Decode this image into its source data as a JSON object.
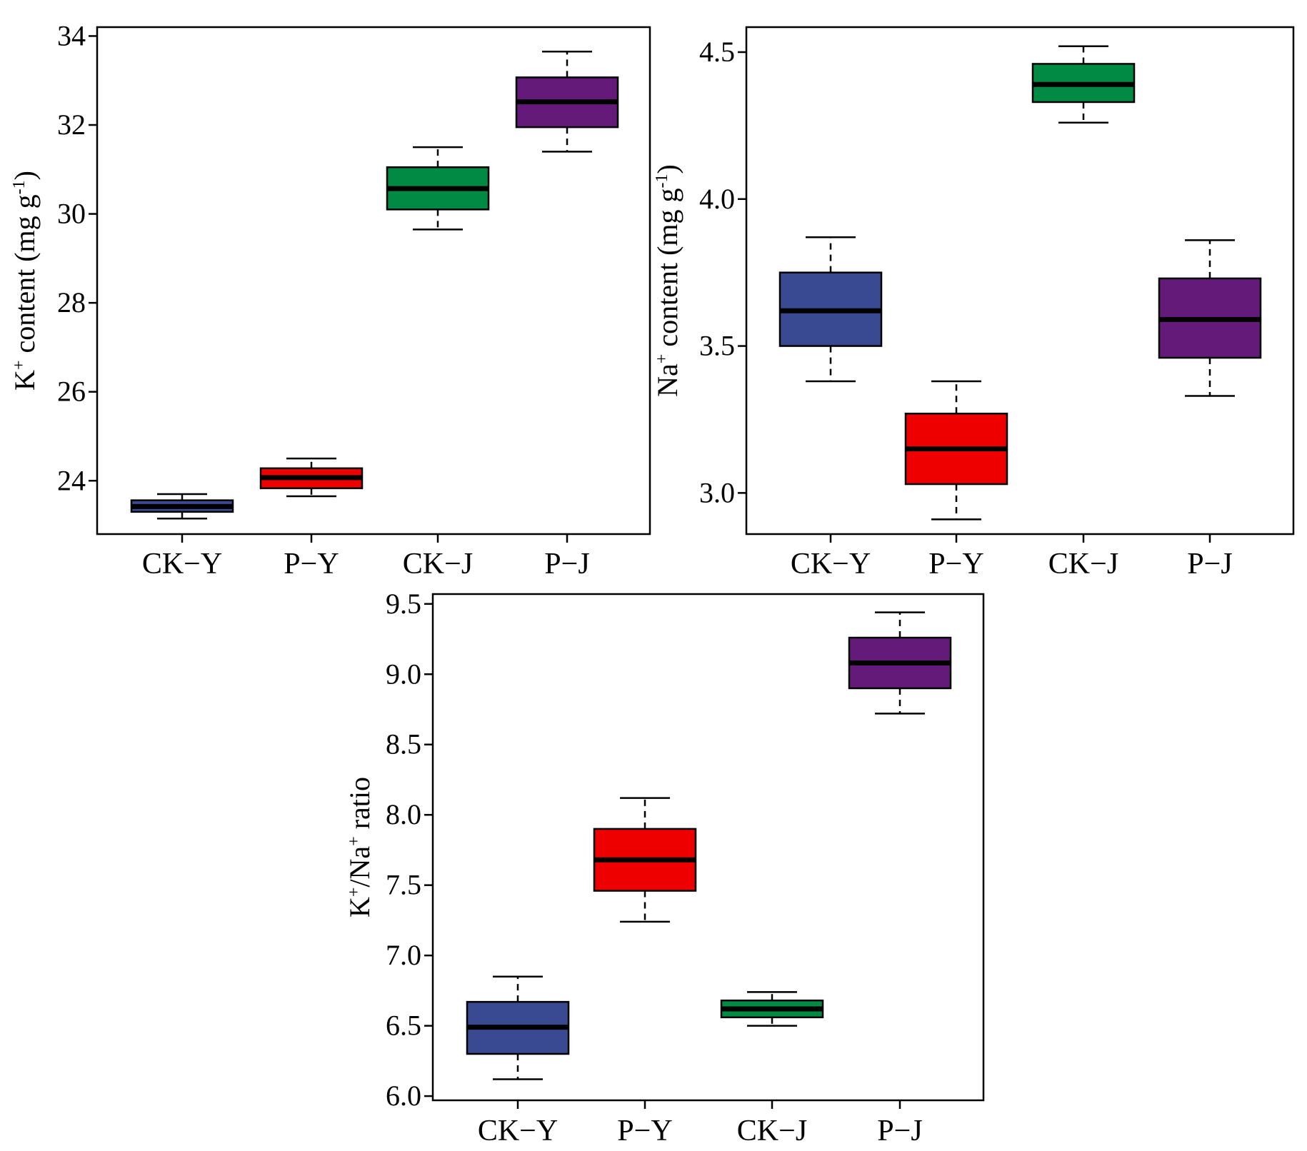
{
  "chart_data": [
    {
      "type": "box",
      "ylabel": {
        "pre": "K",
        "sup1": "+",
        "mid": " content (mg g",
        "sup2": "-1",
        "post": ")"
      },
      "ylim": [
        22.8,
        34.2
      ],
      "yticks": [
        24,
        26,
        28,
        30,
        32,
        34
      ],
      "yticks_text": [
        "24",
        "26",
        "28",
        "30",
        "32",
        "34"
      ],
      "categories": [
        "CK−Y",
        "P−Y",
        "CK−J",
        "P−J"
      ],
      "colors": [
        "#3a4a92",
        "#ee0000",
        "#008a44",
        "#641a78"
      ],
      "boxes": [
        {
          "whisker_low": 23.15,
          "q1": 23.3,
          "median": 23.42,
          "q3": 23.56,
          "whisker_high": 23.7
        },
        {
          "whisker_low": 23.65,
          "q1": 23.83,
          "median": 24.07,
          "q3": 24.28,
          "whisker_high": 24.5
        },
        {
          "whisker_low": 29.65,
          "q1": 30.1,
          "median": 30.57,
          "q3": 31.05,
          "whisker_high": 31.5
        },
        {
          "whisker_low": 31.4,
          "q1": 31.95,
          "median": 32.52,
          "q3": 33.07,
          "whisker_high": 33.65
        }
      ]
    },
    {
      "type": "box",
      "ylabel": {
        "pre": "Na",
        "sup1": "+",
        "mid": " content (mg g",
        "sup2": "-1",
        "post": ")"
      },
      "ylim": [
        2.86,
        4.585
      ],
      "yticks": [
        3.0,
        3.5,
        4.0,
        4.5
      ],
      "yticks_text": [
        "3.0",
        "3.5",
        "4.0",
        "4.5"
      ],
      "categories": [
        "CK−Y",
        "P−Y",
        "CK−J",
        "P−J"
      ],
      "colors": [
        "#3a4a92",
        "#ee0000",
        "#008a44",
        "#641a78"
      ],
      "boxes": [
        {
          "whisker_low": 3.38,
          "q1": 3.5,
          "median": 3.62,
          "q3": 3.75,
          "whisker_high": 3.87
        },
        {
          "whisker_low": 2.91,
          "q1": 3.03,
          "median": 3.15,
          "q3": 3.27,
          "whisker_high": 3.38
        },
        {
          "whisker_low": 4.26,
          "q1": 4.33,
          "median": 4.39,
          "q3": 4.46,
          "whisker_high": 4.52
        },
        {
          "whisker_low": 3.33,
          "q1": 3.46,
          "median": 3.59,
          "q3": 3.73,
          "whisker_high": 3.86
        }
      ]
    },
    {
      "type": "box",
      "ylabel": {
        "pre": "K",
        "sup1": "+",
        "mid": "/Na",
        "sup2": "+",
        "post": " ratio"
      },
      "ylim": [
        5.97,
        9.57
      ],
      "yticks": [
        6.0,
        6.5,
        7.0,
        7.5,
        8.0,
        8.5,
        9.0,
        9.5
      ],
      "yticks_text": [
        "6.0",
        "6.5",
        "7.0",
        "7.5",
        "8.0",
        "8.5",
        "9.0",
        "9.5"
      ],
      "categories": [
        "CK−Y",
        "P−Y",
        "CK−J",
        "P−J"
      ],
      "colors": [
        "#3a4a92",
        "#ee0000",
        "#008a44",
        "#641a78"
      ],
      "boxes": [
        {
          "whisker_low": 6.12,
          "q1": 6.3,
          "median": 6.49,
          "q3": 6.67,
          "whisker_high": 6.85
        },
        {
          "whisker_low": 7.24,
          "q1": 7.46,
          "median": 7.68,
          "q3": 7.9,
          "whisker_high": 8.12
        },
        {
          "whisker_low": 6.5,
          "q1": 6.56,
          "median": 6.62,
          "q3": 6.68,
          "whisker_high": 6.74
        },
        {
          "whisker_low": 8.72,
          "q1": 8.9,
          "median": 9.08,
          "q3": 9.26,
          "whisker_high": 9.44
        }
      ]
    }
  ]
}
